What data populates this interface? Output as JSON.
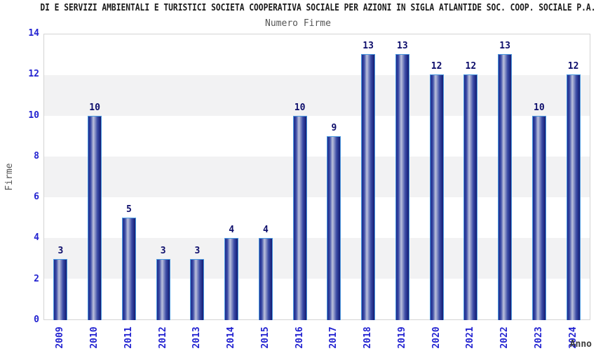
{
  "chart_data": {
    "type": "bar",
    "title": "DI E SERVIZI AMBIENTALI E TURISTICI SOCIETA COOPERATIVA SOCIALE PER AZIONI IN SIGLA ATLANTIDE SOC. COOP. SOCIALE P.A. (c.f",
    "subtitle": "Numero Firme",
    "xlabel": "Anno",
    "ylabel": "Firme",
    "categories": [
      "2009",
      "2010",
      "2011",
      "2012",
      "2013",
      "2014",
      "2015",
      "2016",
      "2017",
      "2018",
      "2019",
      "2020",
      "2021",
      "2022",
      "2023",
      "2024"
    ],
    "values": [
      3,
      10,
      5,
      3,
      3,
      4,
      4,
      10,
      9,
      13,
      13,
      12,
      12,
      13,
      10,
      12
    ],
    "ylim": [
      0,
      14
    ],
    "yticks": [
      0,
      2,
      4,
      6,
      8,
      10,
      12,
      14
    ],
    "grid": "horizontal-bands",
    "legend": "none",
    "colors": {
      "bar_edge_dark": "#1d2b8d",
      "bar_mid": "#3a4aa5",
      "bar_highlight": "#bcc1dc",
      "bar_shadow": "#131b72",
      "bar_border": "#4c9ae0",
      "tick_label": "#2323d1",
      "value_label": "#0d0d6b",
      "band_gray": "#f2f2f3",
      "plot_border": "#d4d4d4"
    }
  }
}
